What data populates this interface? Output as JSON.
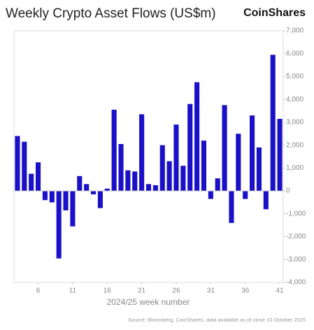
{
  "chart_data": {
    "type": "bar",
    "title": "Weekly Crypto Asset Flows (US$m)",
    "brand": "CoinShares",
    "xlabel": "2024/25 week number",
    "source": "Source: Bloomberg, CoinShares, data available as of close 10 October 2025",
    "x": [
      3,
      4,
      5,
      6,
      7,
      8,
      9,
      10,
      11,
      12,
      13,
      14,
      15,
      16,
      17,
      18,
      19,
      20,
      21,
      22,
      23,
      24,
      25,
      26,
      27,
      28,
      29,
      30,
      31,
      32,
      33,
      34,
      35,
      36,
      37,
      38,
      39,
      40,
      41
    ],
    "values": [
      2400,
      2150,
      750,
      1250,
      -400,
      -500,
      -2950,
      -850,
      -1550,
      650,
      300,
      -150,
      -750,
      100,
      3550,
      2050,
      900,
      850,
      3350,
      300,
      250,
      2000,
      1300,
      2900,
      1100,
      3800,
      4750,
      2200,
      -350,
      550,
      3750,
      -1400,
      2500,
      -350,
      3300,
      1900,
      -800,
      5950,
      3150
    ],
    "color": "#1a10c8",
    "xlim": [
      2.5,
      41.5
    ],
    "xticks": [
      6,
      11,
      16,
      21,
      26,
      31,
      36,
      41
    ],
    "ylim": [
      -4000,
      7000
    ],
    "yticks": [
      {
        "value": -4000,
        "label": "-4,000"
      },
      {
        "value": -3000,
        "label": "-3,000"
      },
      {
        "value": -2000,
        "label": "-2,000"
      },
      {
        "value": -1000,
        "label": "-1,000"
      },
      0,
      {
        "value": 1000,
        "label": "1,000"
      },
      {
        "value": 2000,
        "label": "2,000"
      },
      {
        "value": 3000,
        "label": "3,000"
      },
      {
        "value": 4000,
        "label": "4,000"
      },
      {
        "value": 5000,
        "label": "5,000"
      },
      {
        "value": 6000,
        "label": "6,000"
      },
      {
        "value": 7000,
        "label": "7,000"
      }
    ]
  }
}
